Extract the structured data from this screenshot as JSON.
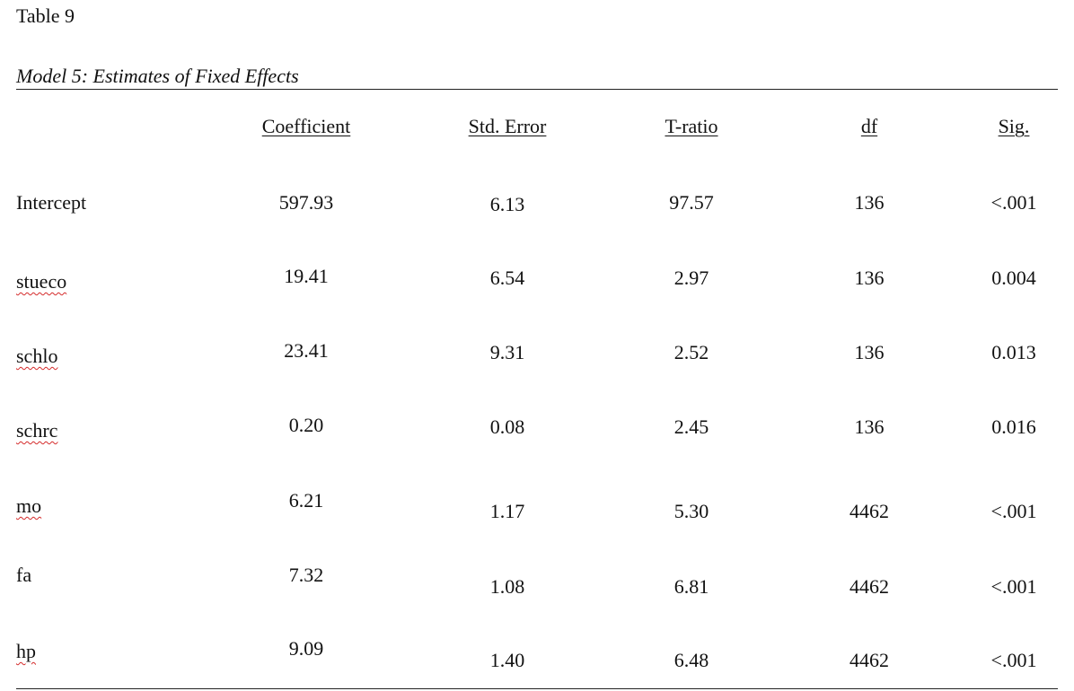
{
  "table": {
    "number": "Table 9",
    "caption": "Model 5: Estimates of Fixed Effects",
    "columns": [
      "Coefficient",
      "Std. Error",
      "T-ratio",
      "df",
      "Sig."
    ],
    "rows": [
      {
        "label": "Intercept",
        "coefficient": "597.93",
        "std_error": "6.13",
        "t_ratio": "97.57",
        "df": "136",
        "sig": "<.001"
      },
      {
        "label": "stueco",
        "coefficient": "19.41",
        "std_error": "6.54",
        "t_ratio": "2.97",
        "df": "136",
        "sig": "0.004"
      },
      {
        "label": "schlo",
        "coefficient": "23.41",
        "std_error": "9.31",
        "t_ratio": "2.52",
        "df": "136",
        "sig": "0.013"
      },
      {
        "label": "schrc",
        "coefficient": "0.20",
        "std_error": "0.08",
        "t_ratio": "2.45",
        "df": "136",
        "sig": "0.016"
      },
      {
        "label": "mo",
        "coefficient": "6.21",
        "std_error": "1.17",
        "t_ratio": "5.30",
        "df": "4462",
        "sig": "<.001"
      },
      {
        "label": "fa",
        "coefficient": "7.32",
        "std_error": "1.08",
        "t_ratio": "6.81",
        "df": "4462",
        "sig": "<.001"
      },
      {
        "label": "hp",
        "coefficient": "9.09",
        "std_error": "1.40",
        "t_ratio": "6.48",
        "df": "4462",
        "sig": "<.001"
      }
    ]
  }
}
